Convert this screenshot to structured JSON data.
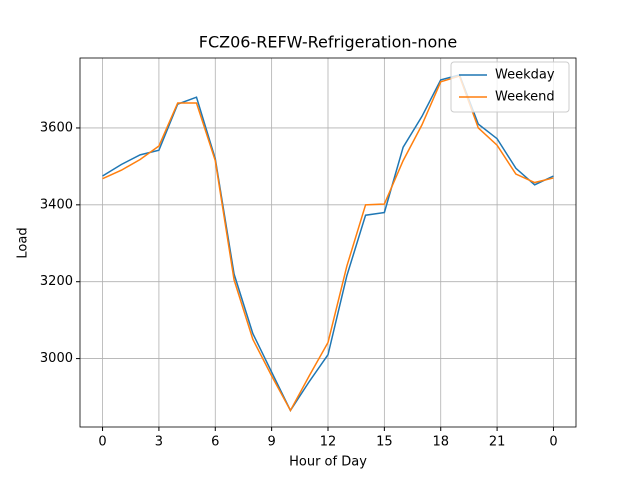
{
  "chart_data": {
    "type": "line",
    "title": "FCZ06-REFW-Refrigeration-none",
    "x_label": "Hour of Day",
    "y_label": "Load",
    "x": [
      0,
      1,
      2,
      3,
      4,
      5,
      6,
      7,
      8,
      9,
      10,
      11,
      12,
      13,
      14,
      15,
      16,
      17,
      18,
      19,
      20,
      21,
      22,
      23,
      24
    ],
    "series": [
      {
        "name": "Weekday",
        "color": "#1f77b4",
        "values": [
          3475,
          3505,
          3530,
          3542,
          3662,
          3680,
          3520,
          3220,
          3065,
          2965,
          2865,
          2940,
          3010,
          3215,
          3373,
          3380,
          3550,
          3630,
          3725,
          3738,
          3610,
          3572,
          3495,
          3452,
          3475
        ]
      },
      {
        "name": "Weekend",
        "color": "#ff7f0e",
        "values": [
          3468,
          3490,
          3518,
          3553,
          3665,
          3665,
          3515,
          3205,
          3050,
          2955,
          2865,
          2955,
          3042,
          3240,
          3400,
          3402,
          3515,
          3608,
          3720,
          3735,
          3600,
          3555,
          3480,
          3458,
          3470
        ]
      }
    ],
    "xlim": [
      -1.2,
      25.2
    ],
    "ylim": [
      2822,
      3782
    ],
    "xticks": [
      0,
      3,
      6,
      9,
      12,
      15,
      18,
      21,
      {
        "value": 24,
        "label": "0"
      }
    ],
    "yticks": [
      3000,
      3200,
      3400,
      3600
    ],
    "grid": true,
    "legend": "upper right"
  }
}
